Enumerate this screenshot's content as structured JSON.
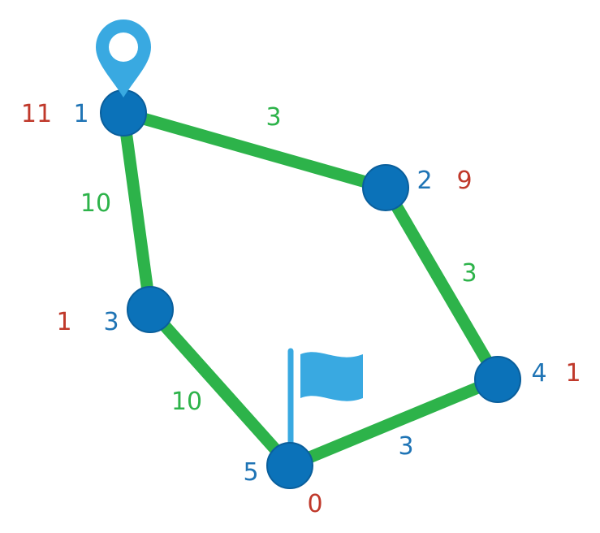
{
  "colors": {
    "edge": "#2db34a",
    "node": "#0b72b9",
    "node_label": "#1f74b5",
    "edge_weight_green": "#2db34a",
    "edge_weight_blue": "#1f74b5",
    "distance": "#c0392b",
    "icon": "#39a9e1"
  },
  "icons": {
    "start": "map-pin-icon",
    "goal": "flag-icon"
  },
  "nodes": [
    {
      "id": "1",
      "distance": "11",
      "role": "start"
    },
    {
      "id": "2",
      "distance": "9"
    },
    {
      "id": "3",
      "distance": "1"
    },
    {
      "id": "4",
      "distance": "1"
    },
    {
      "id": "5",
      "distance": "0",
      "role": "goal"
    }
  ],
  "edges": [
    {
      "from": "1",
      "to": "2",
      "weight": "3"
    },
    {
      "from": "1",
      "to": "3",
      "weight": "10"
    },
    {
      "from": "2",
      "to": "4",
      "weight": "3"
    },
    {
      "from": "3",
      "to": "5",
      "weight": "10"
    },
    {
      "from": "4",
      "to": "5",
      "weight": "3"
    }
  ]
}
